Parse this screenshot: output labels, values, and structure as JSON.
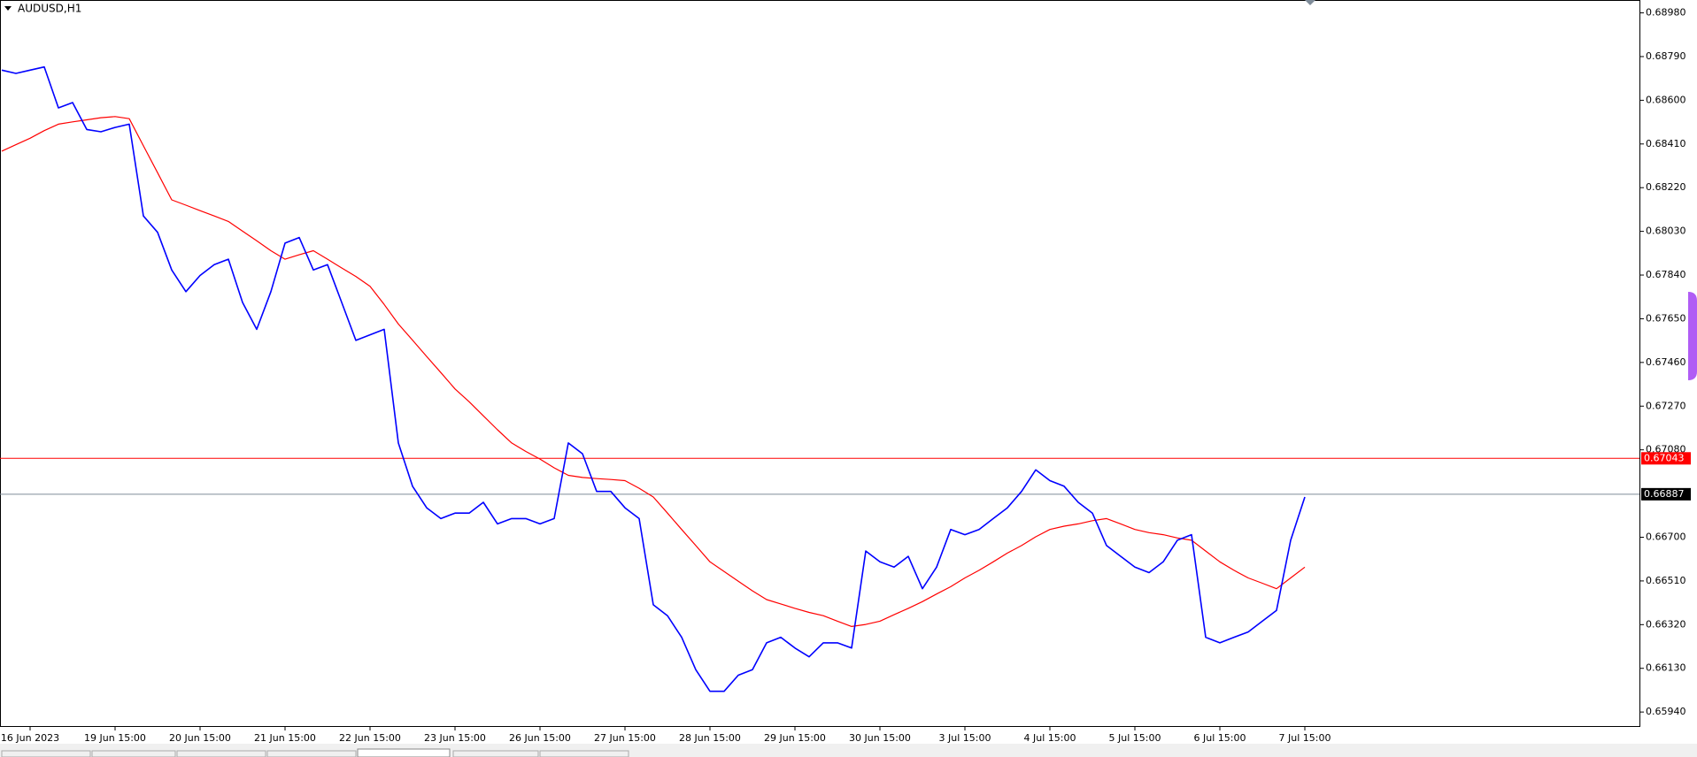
{
  "chart_data": {
    "type": "line",
    "title": "AUDUSD,H1",
    "categories": [
      null,
      null,
      "16 Jun 2023",
      null,
      null,
      null,
      null,
      null,
      "19 Jun 15:00",
      null,
      null,
      null,
      null,
      null,
      "20 Jun 15:00",
      null,
      null,
      null,
      null,
      null,
      "21 Jun 15:00",
      null,
      null,
      null,
      null,
      null,
      "22 Jun 15:00",
      null,
      null,
      null,
      null,
      null,
      "23 Jun 15:00",
      null,
      null,
      null,
      null,
      null,
      "26 Jun 15:00",
      null,
      null,
      null,
      null,
      null,
      "27 Jun 15:00",
      null,
      null,
      null,
      null,
      null,
      "28 Jun 15:00",
      null,
      null,
      null,
      null,
      null,
      "29 Jun 15:00",
      null,
      null,
      null,
      null,
      null,
      "30 Jun 15:00",
      null,
      null,
      null,
      null,
      null,
      "3 Jul 15:00",
      null,
      null,
      null,
      null,
      null,
      "4 Jul 15:00",
      null,
      null,
      null,
      null,
      null,
      "5 Jul 15:00",
      null,
      null,
      null,
      null,
      null,
      "6 Jul 15:00",
      null,
      null,
      null,
      null,
      null,
      "7 Jul 15:00"
    ],
    "series": [
      {
        "color": "#0000ff",
        "values": [
          0.68731,
          0.68717,
          0.68731,
          0.68745,
          0.68567,
          0.6859,
          0.68473,
          0.68463,
          0.68482,
          0.68496,
          0.68097,
          0.68026,
          0.67862,
          0.67768,
          0.67838,
          0.67885,
          0.67909,
          0.67721,
          0.67604,
          0.67768,
          0.67979,
          0.68003,
          0.67862,
          0.67885,
          0.67721,
          0.67556,
          0.6758,
          0.67604,
          0.6711,
          0.66922,
          0.66828,
          0.66781,
          0.66805,
          0.66805,
          0.66852,
          0.66758,
          0.66781,
          0.66781,
          0.66758,
          0.66781,
          0.6711,
          0.67063,
          0.66899,
          0.66899,
          0.66828,
          0.66781,
          0.66406,
          0.66359,
          0.66265,
          0.66124,
          0.6603,
          0.6603,
          0.661,
          0.66124,
          0.66241,
          0.66265,
          0.66218,
          0.6618,
          0.66241,
          0.66241,
          0.66218,
          0.6664,
          0.66593,
          0.6657,
          0.66617,
          0.66476,
          0.6657,
          0.66734,
          0.66711,
          0.66734,
          0.66781,
          0.66828,
          0.66899,
          0.66993,
          0.66946,
          0.66922,
          0.66852,
          0.66805,
          0.66664,
          0.66617,
          0.6657,
          0.66546,
          0.66593,
          0.66687,
          0.66711,
          0.66265,
          0.66241,
          0.66265,
          0.66288,
          0.66335,
          0.66382,
          0.66687,
          0.66875
        ]
      },
      {
        "color": "#ff0000",
        "values": [
          0.68379,
          0.68407,
          0.68435,
          0.68468,
          0.68496,
          0.68506,
          0.68515,
          0.68524,
          0.68529,
          0.6852,
          0.68402,
          0.68285,
          0.68167,
          0.68144,
          0.6812,
          0.68097,
          0.68073,
          0.68031,
          0.67989,
          0.67946,
          0.67909,
          0.67928,
          0.67946,
          0.67909,
          0.67871,
          0.67834,
          0.67791,
          0.67712,
          0.67627,
          0.67557,
          0.67486,
          0.67416,
          0.67345,
          0.67289,
          0.67228,
          0.67167,
          0.6711,
          0.67073,
          0.6704,
          0.67002,
          0.66969,
          0.6696,
          0.66955,
          0.66951,
          0.66946,
          0.66913,
          0.66875,
          0.66805,
          0.66734,
          0.66664,
          0.66593,
          0.66551,
          0.66509,
          0.66467,
          0.66429,
          0.6641,
          0.66391,
          0.66373,
          0.66359,
          0.66335,
          0.66312,
          0.66321,
          0.66335,
          0.66363,
          0.66391,
          0.6642,
          0.66453,
          0.66485,
          0.66523,
          0.66556,
          0.66593,
          0.66631,
          0.66664,
          0.66702,
          0.66734,
          0.66748,
          0.66758,
          0.66772,
          0.66781,
          0.66758,
          0.66734,
          0.6672,
          0.66711,
          0.66697,
          0.66687,
          0.6664,
          0.66593,
          0.66556,
          0.66523,
          0.665,
          0.66476,
          0.66523,
          0.6657
        ]
      }
    ],
    "hlines": [
      {
        "value": 0.67043,
        "color": "#ff0000"
      },
      {
        "value": 0.66887,
        "color": "#7f8c99"
      }
    ],
    "ylim": [
      0.65879,
      0.69036
    ],
    "yticks": [
      {
        "value": 0.6898,
        "label": "0.68980"
      },
      {
        "value": 0.6879,
        "label": "0.68790"
      },
      {
        "value": 0.686,
        "label": "0.68600"
      },
      {
        "value": 0.6841,
        "label": "0.68410"
      },
      {
        "value": 0.6822,
        "label": "0.68220"
      },
      {
        "value": 0.6803,
        "label": "0.68030"
      },
      {
        "value": 0.6784,
        "label": "0.67840"
      },
      {
        "value": 0.6765,
        "label": "0.67650"
      },
      {
        "value": 0.6746,
        "label": "0.67460"
      },
      {
        "value": 0.6727,
        "label": "0.67270"
      },
      {
        "value": 0.6708,
        "label": "0.67080"
      },
      {
        "value": 0.667,
        "label": "0.66700"
      },
      {
        "value": 0.6651,
        "label": "0.66510"
      },
      {
        "value": 0.6632,
        "label": "0.66320"
      },
      {
        "value": 0.6613,
        "label": "0.66130"
      },
      {
        "value": 0.6594,
        "label": "0.65940"
      }
    ],
    "grid": false
  }
}
